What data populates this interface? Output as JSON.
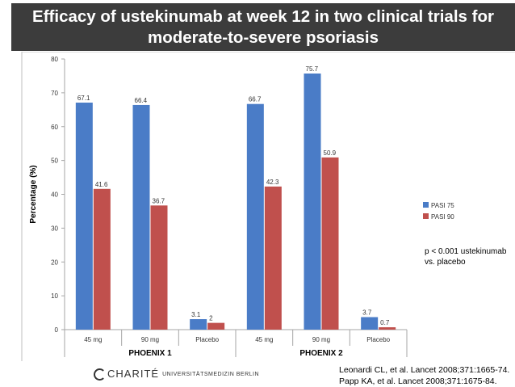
{
  "title_lines": [
    "Efficacy of ustekinumab at week 12 in two clinical trials for",
    "moderate-to-severe psoriasis"
  ],
  "note_lines": [
    "p < 0.001 ustekinumab",
    "vs. placebo"
  ],
  "references": [
    "Leonardi CL, et al. Lancet 2008;371:1665-74.",
    "Papp KA, et al. Lancet 2008;371:1675-84."
  ],
  "logo": {
    "brand": "CHARITÉ",
    "subtitle": "UNIVERSITÄTSMEDIZIN BERLIN"
  },
  "chart_data": {
    "type": "bar",
    "ylabel": "Percentage (%)",
    "ylim": [
      0,
      80
    ],
    "yticks": [
      0,
      10,
      20,
      30,
      40,
      50,
      60,
      70,
      80
    ],
    "groups": [
      {
        "name": "PHOENIX 1",
        "categories": [
          "45 mg",
          "90 mg",
          "Placebo"
        ]
      },
      {
        "name": "PHOENIX 2",
        "categories": [
          "45 mg",
          "90 mg",
          "Placebo"
        ]
      }
    ],
    "series": [
      {
        "name": "PASI 75",
        "color": "#4a7cc7",
        "values": [
          67.1,
          66.4,
          3.1,
          66.7,
          75.7,
          3.7
        ],
        "labels": [
          "67.1",
          "66.4",
          "3.1",
          "66.7",
          "75.7",
          "3.7"
        ]
      },
      {
        "name": "PASI 90",
        "color": "#c0504d",
        "values": [
          41.6,
          36.7,
          2,
          42.3,
          50.9,
          0.7
        ],
        "labels": [
          "41.6",
          "36.7",
          "2",
          "42.3",
          "50.9",
          "0.7"
        ]
      }
    ],
    "grid": false,
    "legend_position": "right"
  }
}
